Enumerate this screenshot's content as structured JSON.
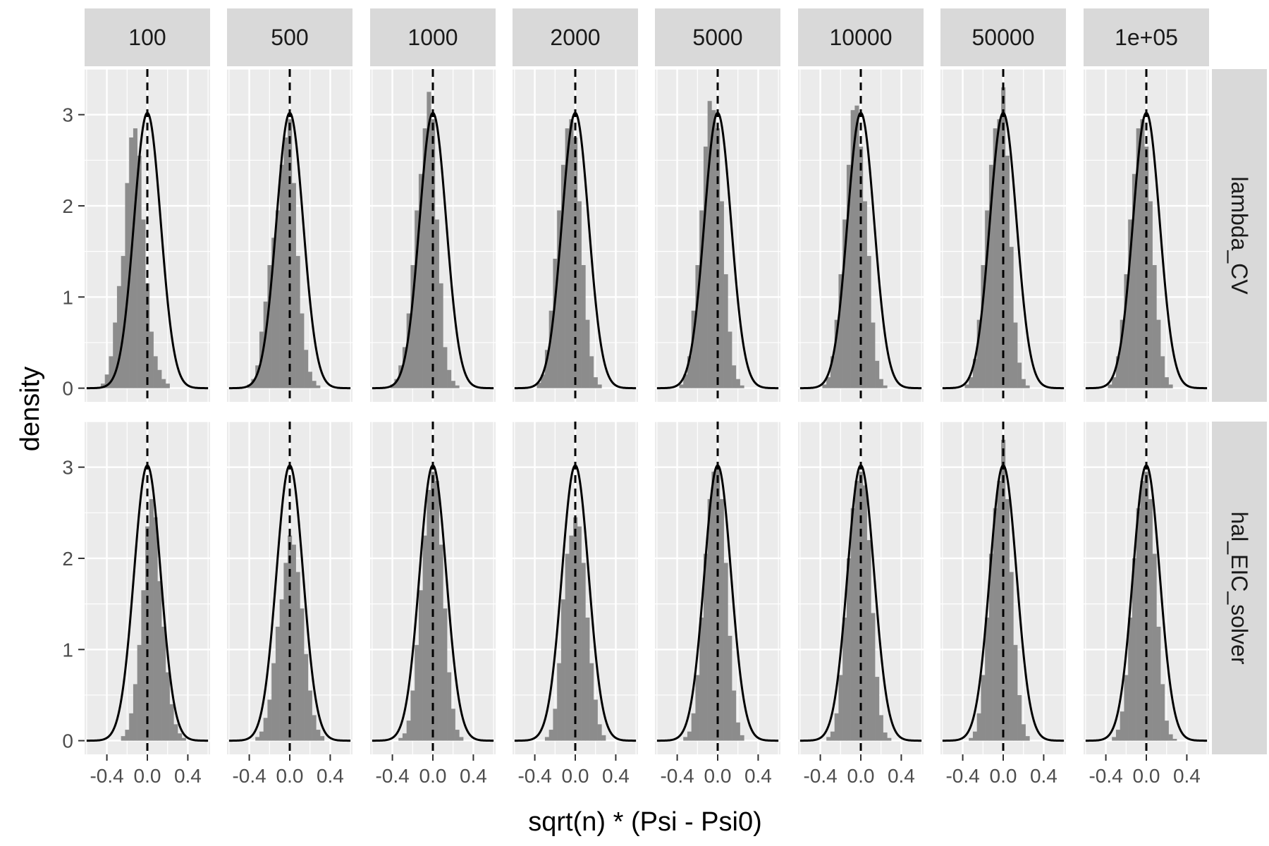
{
  "chart_data": {
    "type": "histogram",
    "layout": "facet-grid",
    "xlabel": "sqrt(n) * (Psi - Psi0)",
    "ylabel": "density",
    "xlim": [
      -0.62,
      0.62
    ],
    "ylim": [
      -0.15,
      3.5
    ],
    "x_ticks": [
      -0.4,
      0.0,
      0.4
    ],
    "x_tick_labels": [
      "-0.4",
      "0.0",
      "0.4"
    ],
    "y_ticks": [
      0,
      1,
      2,
      3
    ],
    "y_tick_labels": [
      "0",
      "1",
      "2",
      "3"
    ],
    "columns": [
      "100",
      "500",
      "1000",
      "2000",
      "5000",
      "10000",
      "50000",
      "1e+05"
    ],
    "rows": [
      "lambda_CV",
      "hal_EIC_solver"
    ],
    "bin_width": 0.04,
    "bin_centers": [
      -0.6,
      -0.56,
      -0.52,
      -0.48,
      -0.44,
      -0.4,
      -0.36,
      -0.32,
      -0.28,
      -0.24,
      -0.2,
      -0.16,
      -0.12,
      -0.08,
      -0.04,
      0.0,
      0.04,
      0.08,
      0.12,
      0.16,
      0.2,
      0.24,
      0.28,
      0.32,
      0.36,
      0.4,
      0.44,
      0.48,
      0.52,
      0.56,
      0.6
    ],
    "reference_line_x": 0,
    "overlay_curve": {
      "type": "normal-density",
      "mean": 0,
      "sd": 0.132,
      "peak_density": 3.02
    },
    "panels": [
      {
        "row": "lambda_CV",
        "column": "100",
        "densities": [
          0,
          0,
          0,
          0,
          0.05,
          0.15,
          0.35,
          0.72,
          1.12,
          1.45,
          2.25,
          2.75,
          2.85,
          2.55,
          1.85,
          1.15,
          0.62,
          0.35,
          0.2,
          0.1,
          0.05,
          0,
          0,
          0,
          0,
          0,
          0,
          0,
          0,
          0,
          0
        ]
      },
      {
        "row": "lambda_CV",
        "column": "500",
        "densities": [
          0,
          0,
          0,
          0,
          0,
          0.04,
          0.1,
          0.25,
          0.62,
          0.95,
          1.35,
          1.65,
          1.95,
          2.45,
          2.75,
          2.95,
          2.25,
          1.45,
          0.82,
          0.42,
          0.18,
          0.08,
          0.03,
          0,
          0,
          0,
          0,
          0,
          0,
          0,
          0
        ]
      },
      {
        "row": "lambda_CV",
        "column": "1000",
        "densities": [
          0,
          0,
          0,
          0,
          0,
          0.04,
          0.1,
          0.25,
          0.45,
          0.82,
          1.35,
          1.95,
          2.35,
          2.85,
          3.25,
          2.95,
          1.85,
          1.15,
          0.45,
          0.2,
          0.08,
          0.03,
          0,
          0,
          0,
          0,
          0,
          0,
          0,
          0,
          0
        ]
      },
      {
        "row": "lambda_CV",
        "column": "2000",
        "densities": [
          0,
          0,
          0,
          0,
          0,
          0,
          0.06,
          0.15,
          0.42,
          0.85,
          1.42,
          1.95,
          2.45,
          2.85,
          2.95,
          2.75,
          2.05,
          1.35,
          0.75,
          0.35,
          0.12,
          0.04,
          0,
          0,
          0,
          0,
          0,
          0,
          0,
          0,
          0
        ]
      },
      {
        "row": "lambda_CV",
        "column": "5000",
        "densities": [
          0,
          0,
          0,
          0,
          0,
          0,
          0.04,
          0.15,
          0.35,
          0.85,
          1.35,
          1.95,
          2.65,
          3.15,
          3.05,
          2.85,
          2.05,
          1.25,
          0.62,
          0.25,
          0.1,
          0.03,
          0,
          0,
          0,
          0,
          0,
          0,
          0,
          0,
          0
        ]
      },
      {
        "row": "lambda_CV",
        "column": "10000",
        "densities": [
          0,
          0,
          0,
          0,
          0,
          0,
          0.04,
          0.12,
          0.35,
          0.75,
          1.25,
          1.85,
          2.45,
          3.05,
          3.1,
          2.65,
          2.05,
          1.45,
          0.72,
          0.3,
          0.1,
          0.03,
          0,
          0,
          0,
          0,
          0,
          0,
          0,
          0,
          0
        ]
      },
      {
        "row": "lambda_CV",
        "column": "50000",
        "densities": [
          0,
          0,
          0,
          0,
          0,
          0,
          0.04,
          0.12,
          0.32,
          0.75,
          1.35,
          1.95,
          2.45,
          2.85,
          2.95,
          3.3,
          2.55,
          1.55,
          0.72,
          0.28,
          0.1,
          0.03,
          0,
          0,
          0,
          0,
          0,
          0,
          0,
          0,
          0
        ]
      },
      {
        "row": "lambda_CV",
        "column": "1e+05",
        "densities": [
          0,
          0,
          0,
          0,
          0,
          0,
          0.04,
          0.12,
          0.35,
          0.75,
          1.25,
          1.85,
          2.35,
          2.85,
          2.95,
          2.65,
          2.05,
          1.35,
          0.75,
          0.35,
          0.12,
          0.04,
          0,
          0,
          0,
          0,
          0,
          0,
          0,
          0,
          0
        ]
      },
      {
        "row": "hal_EIC_solver",
        "column": "100",
        "densities": [
          0,
          0,
          0,
          0,
          0,
          0,
          0,
          0,
          0,
          0.05,
          0.12,
          0.3,
          0.62,
          1.05,
          1.65,
          2.35,
          2.65,
          2.45,
          1.75,
          1.25,
          0.75,
          0.4,
          0.18,
          0.08,
          0.03,
          0,
          0,
          0,
          0,
          0,
          0
        ]
      },
      {
        "row": "hal_EIC_solver",
        "column": "500",
        "densities": [
          0,
          0,
          0,
          0,
          0,
          0,
          0,
          0.04,
          0.1,
          0.25,
          0.45,
          0.85,
          1.25,
          1.55,
          1.95,
          2.25,
          2.15,
          1.85,
          1.45,
          0.95,
          0.55,
          0.28,
          0.12,
          0.05,
          0,
          0,
          0,
          0,
          0,
          0,
          0
        ]
      },
      {
        "row": "hal_EIC_solver",
        "column": "1000",
        "densities": [
          0,
          0,
          0,
          0,
          0,
          0,
          0,
          0.03,
          0.08,
          0.22,
          0.55,
          1.05,
          1.65,
          2.25,
          2.75,
          2.95,
          2.85,
          2.15,
          1.45,
          0.75,
          0.35,
          0.12,
          0.04,
          0,
          0,
          0,
          0,
          0,
          0,
          0,
          0
        ]
      },
      {
        "row": "hal_EIC_solver",
        "column": "2000",
        "densities": [
          0,
          0,
          0,
          0,
          0,
          0,
          0,
          0,
          0.04,
          0.12,
          0.35,
          0.85,
          1.55,
          2.05,
          2.25,
          2.45,
          2.35,
          1.95,
          1.35,
          0.85,
          0.45,
          0.18,
          0.06,
          0,
          0,
          0,
          0,
          0,
          0,
          0,
          0
        ]
      },
      {
        "row": "hal_EIC_solver",
        "column": "5000",
        "densities": [
          0,
          0,
          0,
          0,
          0,
          0,
          0,
          0.04,
          0.1,
          0.3,
          0.72,
          1.35,
          2.05,
          2.65,
          2.95,
          3.0,
          2.65,
          1.95,
          1.15,
          0.55,
          0.2,
          0.06,
          0,
          0,
          0,
          0,
          0,
          0,
          0,
          0,
          0
        ]
      },
      {
        "row": "hal_EIC_solver",
        "column": "10000",
        "densities": [
          0,
          0,
          0,
          0,
          0,
          0,
          0,
          0.04,
          0.1,
          0.3,
          0.72,
          1.35,
          2.0,
          2.55,
          2.85,
          2.95,
          2.8,
          2.2,
          1.4,
          0.7,
          0.28,
          0.09,
          0.03,
          0,
          0,
          0,
          0,
          0,
          0,
          0,
          0
        ]
      },
      {
        "row": "hal_EIC_solver",
        "column": "50000",
        "densities": [
          0,
          0,
          0,
          0,
          0,
          0,
          0,
          0.03,
          0.1,
          0.3,
          0.72,
          1.35,
          2.05,
          2.55,
          2.85,
          3.3,
          2.65,
          1.85,
          1.05,
          0.5,
          0.18,
          0.05,
          0,
          0,
          0,
          0,
          0,
          0,
          0,
          0,
          0
        ]
      },
      {
        "row": "hal_EIC_solver",
        "column": "1e+05",
        "densities": [
          0,
          0,
          0,
          0,
          0,
          0,
          0,
          0.04,
          0.12,
          0.32,
          0.72,
          1.35,
          2.0,
          2.55,
          2.85,
          2.95,
          2.65,
          2.05,
          1.25,
          0.62,
          0.22,
          0.07,
          0.02,
          0,
          0,
          0,
          0,
          0,
          0,
          0,
          0
        ]
      }
    ],
    "colors": {
      "panel_background": "#ebebeb",
      "grid_major": "#ffffff",
      "strip_background": "#d9d9d9",
      "histogram_fill": "#8c8c8c",
      "curve": "#000000",
      "reference_line": "#000000"
    },
    "grid": true,
    "legend": "none"
  }
}
